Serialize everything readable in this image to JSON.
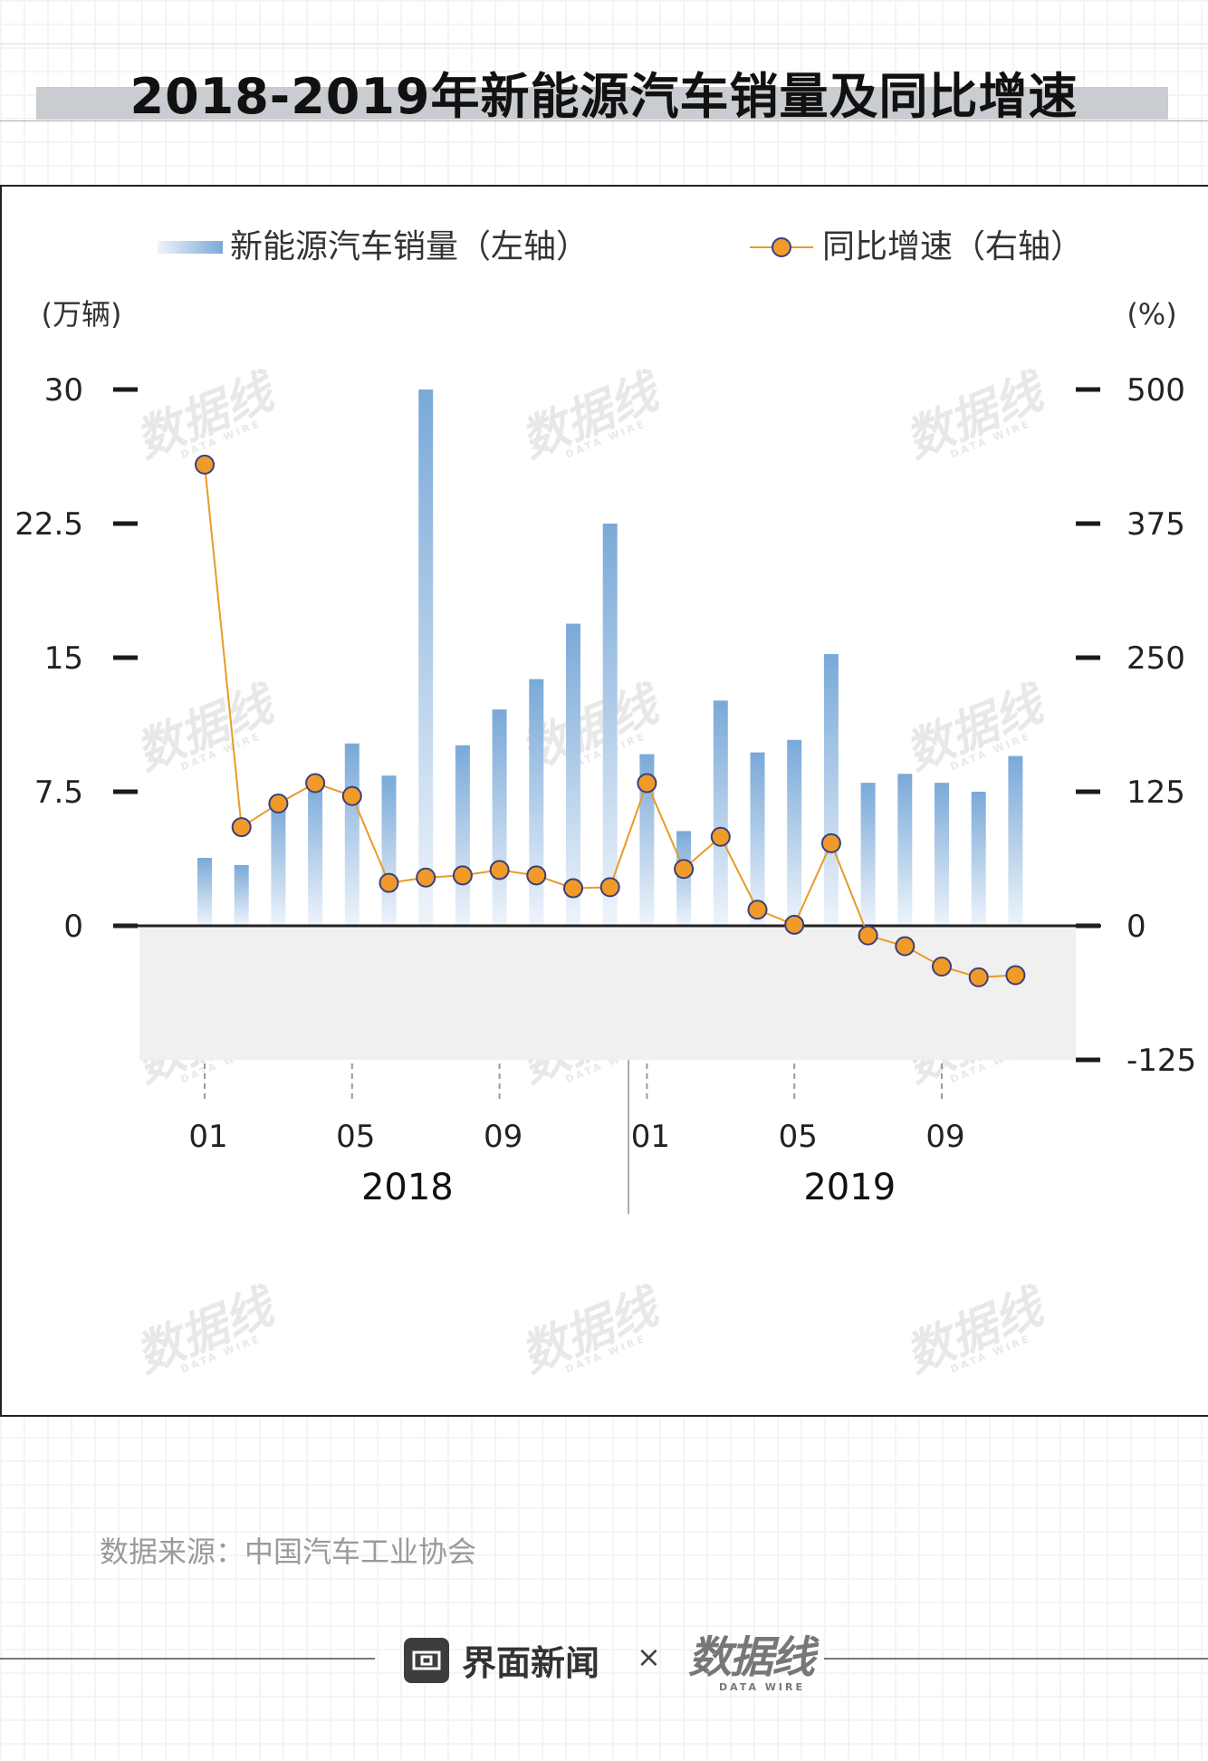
{
  "title": "2018-2019年新能源汽车销量及同比增速",
  "source": "数据来源：中国汽车工业协会",
  "brands": {
    "jiemian": "界面新闻",
    "times": "×",
    "datawire": "数据线",
    "datawire_sub": "DATA WIRE"
  },
  "watermark": {
    "text": "数据线",
    "sub": "DATA WIRE"
  },
  "colors": {
    "bar": "#7aa9d8",
    "bar_fade": "#eef4fb",
    "line": "#e89a2a",
    "marker_fill": "#f09a2a",
    "marker_stroke": "#3a3f7a",
    "negative_band": "#f0f0f0"
  },
  "chart_data": {
    "type": "bar+line",
    "legend": {
      "bar_label": "新能源汽车销量（左轴）",
      "line_label": "同比增速（右轴）",
      "position": "top"
    },
    "left_axis": {
      "unit": "(万辆)",
      "ticks": [
        "30",
        "22.5",
        "15",
        "7.5",
        "0"
      ],
      "tick_values": [
        30,
        22.5,
        15,
        7.5,
        0
      ],
      "range": [
        -7.5,
        30
      ]
    },
    "right_axis": {
      "unit": "(%)",
      "ticks": [
        "500",
        "375",
        "250",
        "125",
        "0",
        "-125"
      ],
      "tick_values": [
        500,
        375,
        250,
        125,
        0,
        -125
      ],
      "range": [
        -125,
        500
      ]
    },
    "x_ticks": [
      {
        "label": "01",
        "index": 0
      },
      {
        "label": "05",
        "index": 4
      },
      {
        "label": "09",
        "index": 8
      },
      {
        "label": "01",
        "index": 12
      },
      {
        "label": "05",
        "index": 16
      },
      {
        "label": "09",
        "index": 20
      }
    ],
    "years": [
      {
        "label": "2018",
        "start": 0,
        "end": 11
      },
      {
        "label": "2019",
        "start": 12,
        "end": 23
      }
    ],
    "categories": [
      "2018-01",
      "2018-02",
      "2018-03",
      "2018-04",
      "2018-05",
      "2018-06",
      "2018-07",
      "2018-08",
      "2018-09",
      "2018-10",
      "2018-11",
      "2018-12",
      "2019-01",
      "2019-02",
      "2019-03",
      "2019-04",
      "2019-05",
      "2019-06",
      "2019-07",
      "2019-08",
      "2019-09",
      "2019-10",
      "2019-11",
      "2019-12"
    ],
    "series": [
      {
        "name": "新能源汽车销量",
        "axis": "left",
        "type": "bar",
        "values": [
          3.8,
          3.4,
          6.8,
          8.2,
          10.2,
          8.4,
          30.0,
          10.1,
          12.1,
          13.8,
          16.9,
          22.5,
          9.6,
          5.3,
          12.6,
          9.7,
          10.4,
          15.2,
          8.0,
          8.5,
          8.0,
          7.5,
          9.5,
          null
        ]
      },
      {
        "name": "同比增速",
        "axis": "right",
        "type": "line",
        "values": [
          430,
          92,
          114,
          133,
          121,
          40,
          45,
          47,
          52,
          47,
          35,
          36,
          133,
          53,
          83,
          15,
          1,
          77,
          -9,
          -19,
          -38,
          -48,
          -46,
          null
        ]
      }
    ]
  }
}
